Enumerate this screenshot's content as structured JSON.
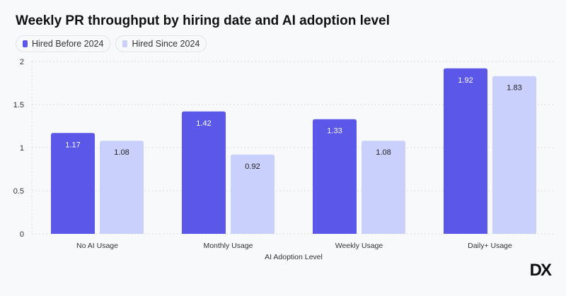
{
  "chart_data": {
    "type": "bar",
    "title": "Weekly PR throughput by hiring date and AI adoption level",
    "xlabel": "AI Adoption Level",
    "ylabel": "",
    "categories": [
      "No AI Usage",
      "Monthly Usage",
      "Weekly Usage",
      "Daily+ Usage"
    ],
    "series": [
      {
        "name": "Hired Before 2024",
        "color": "#5b57e8",
        "values": [
          1.17,
          1.42,
          1.33,
          1.92
        ]
      },
      {
        "name": "Hired Since 2024",
        "color": "#c8d0fb",
        "values": [
          1.08,
          0.92,
          1.08,
          1.83
        ]
      }
    ],
    "ylim": [
      0,
      2
    ],
    "yticks": [
      "0",
      "0.5",
      "1",
      "1.5",
      "2"
    ],
    "grid": true,
    "legend": "top-left"
  },
  "logo": "DX"
}
